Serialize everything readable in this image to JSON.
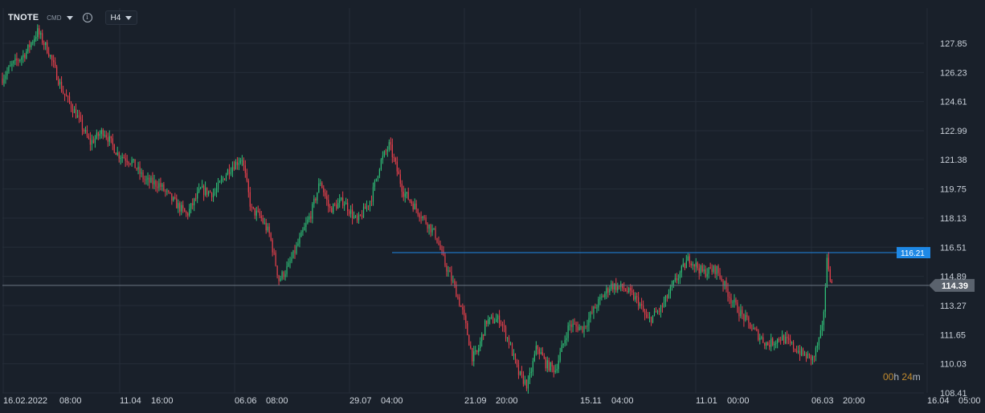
{
  "header": {
    "symbol": "TNOTE",
    "market": "CMD",
    "timeframe": "H4"
  },
  "countdown": {
    "hours": "00",
    "h": "h",
    "minutes": "24",
    "m": "m"
  },
  "colors": {
    "background": "#19202a",
    "grid": "#252d38",
    "up": "#2fbf77",
    "down": "#e5404c",
    "hline_blue": "#1e88e5",
    "hline_gray": "#6d7683",
    "price_tag_gray": "#5a626d"
  },
  "chart_data": {
    "type": "candlestick",
    "y_ticks": [
      "127.85",
      "126.23",
      "124.61",
      "122.99",
      "121.38",
      "119.75",
      "118.13",
      "116.51",
      "114.89",
      "113.27",
      "111.65",
      "110.03",
      "108.41"
    ],
    "x_ticks": [
      "16.02.2022",
      "08:00",
      "11.04",
      "16:00",
      "06.06",
      "08:00",
      "29.07",
      "04:00",
      "21.09",
      "20:00",
      "15.11",
      "04:00",
      "11.01",
      "00:00",
      "06.03",
      "20:00",
      "16.04",
      "05:00"
    ],
    "ylim": [
      108.0,
      128.9
    ],
    "horizontal_lines": [
      {
        "value": 116.21,
        "label": "116.21",
        "color": "blue"
      },
      {
        "value": 114.39,
        "label": "114.39",
        "color": "gray"
      }
    ],
    "price_path": [
      [
        0,
        125.9
      ],
      [
        0.01,
        126.6
      ],
      [
        0.025,
        127.3
      ],
      [
        0.038,
        128.5
      ],
      [
        0.05,
        127.4
      ],
      [
        0.065,
        125.2
      ],
      [
        0.08,
        123.9
      ],
      [
        0.095,
        122.3
      ],
      [
        0.11,
        123.0
      ],
      [
        0.125,
        121.7
      ],
      [
        0.14,
        121.3
      ],
      [
        0.155,
        120.2
      ],
      [
        0.17,
        120.0
      ],
      [
        0.185,
        119.1
      ],
      [
        0.2,
        118.3
      ],
      [
        0.215,
        119.7
      ],
      [
        0.23,
        119.5
      ],
      [
        0.245,
        120.8
      ],
      [
        0.26,
        121.5
      ],
      [
        0.27,
        118.6
      ],
      [
        0.28,
        118.2
      ],
      [
        0.29,
        117.2
      ],
      [
        0.3,
        114.7
      ],
      [
        0.31,
        115.4
      ],
      [
        0.32,
        116.6
      ],
      [
        0.335,
        118.4
      ],
      [
        0.345,
        120.2
      ],
      [
        0.355,
        118.6
      ],
      [
        0.37,
        119.1
      ],
      [
        0.385,
        117.9
      ],
      [
        0.4,
        119.2
      ],
      [
        0.41,
        121.2
      ],
      [
        0.42,
        122.2
      ],
      [
        0.435,
        119.6
      ],
      [
        0.45,
        118.6
      ],
      [
        0.46,
        117.9
      ],
      [
        0.47,
        117.2
      ],
      [
        0.48,
        115.6
      ],
      [
        0.49,
        114.4
      ],
      [
        0.5,
        112.8
      ],
      [
        0.51,
        110.4
      ],
      [
        0.515,
        110.6
      ],
      [
        0.525,
        112.4
      ],
      [
        0.54,
        112.5
      ],
      [
        0.55,
        111.2
      ],
      [
        0.56,
        109.5
      ],
      [
        0.57,
        108.8
      ],
      [
        0.58,
        111.0
      ],
      [
        0.59,
        110.0
      ],
      [
        0.6,
        109.7
      ],
      [
        0.615,
        112.2
      ],
      [
        0.63,
        112.0
      ],
      [
        0.645,
        113.3
      ],
      [
        0.66,
        114.4
      ],
      [
        0.675,
        114.2
      ],
      [
        0.69,
        113.5
      ],
      [
        0.7,
        112.4
      ],
      [
        0.715,
        113.1
      ],
      [
        0.73,
        114.6
      ],
      [
        0.745,
        115.9
      ],
      [
        0.76,
        115.1
      ],
      [
        0.775,
        115.3
      ],
      [
        0.79,
        113.7
      ],
      [
        0.8,
        112.9
      ],
      [
        0.815,
        111.9
      ],
      [
        0.83,
        111.1
      ],
      [
        0.845,
        111.5
      ],
      [
        0.86,
        110.9
      ],
      [
        0.87,
        110.5
      ],
      [
        0.88,
        110.3
      ],
      [
        0.89,
        112.0
      ],
      [
        0.895,
        115.9
      ],
      [
        0.9,
        114.4
      ]
    ]
  }
}
